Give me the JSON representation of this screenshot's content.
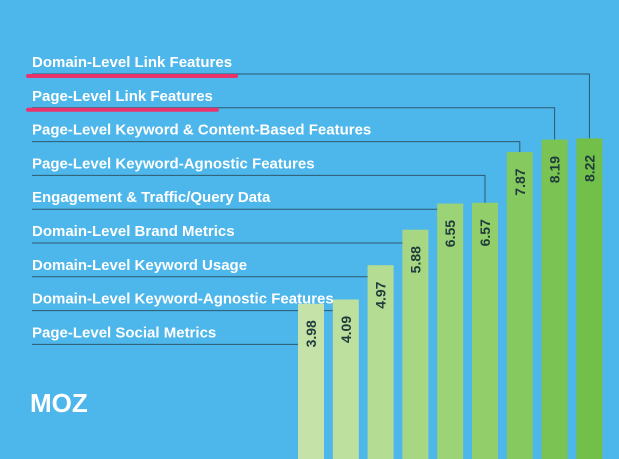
{
  "logo": {
    "text": "MOZ"
  },
  "colors": {
    "background": "#4db6ea",
    "leader_line": "#2c5a6e",
    "highlight_underline": "#e8336c",
    "bar_colors": [
      "#c5e2a8",
      "#bde09e",
      "#b4dc92",
      "#a8d784",
      "#9dd377",
      "#92ce6a",
      "#86c95e",
      "#7bc453",
      "#72c049"
    ]
  },
  "chart_data": {
    "type": "bar",
    "title": "",
    "xlabel": "",
    "ylabel": "",
    "categories": [
      "Page-Level Social Metrics",
      "Domain-Level Keyword-Agnostic Features",
      "Domain-Level Keyword Usage",
      "Domain-Level Brand Metrics",
      "Engagement & Traffic/Query Data",
      "Page-Level Keyword-Agnostic Features",
      "Page-Level Keyword & Content-Based Features",
      "Page-Level Link Features",
      "Domain-Level Link Features"
    ],
    "values": [
      3.98,
      4.09,
      4.97,
      5.88,
      6.55,
      6.57,
      7.87,
      8.19,
      8.22
    ],
    "value_labels": [
      "3.98",
      "4.09",
      "4.97",
      "5.88",
      "6.55",
      "6.57",
      "7.87",
      "8.19",
      "8.22"
    ],
    "highlighted_categories": [
      "Domain-Level Link Features",
      "Page-Level Link Features"
    ],
    "grid": false,
    "legend": "none"
  }
}
